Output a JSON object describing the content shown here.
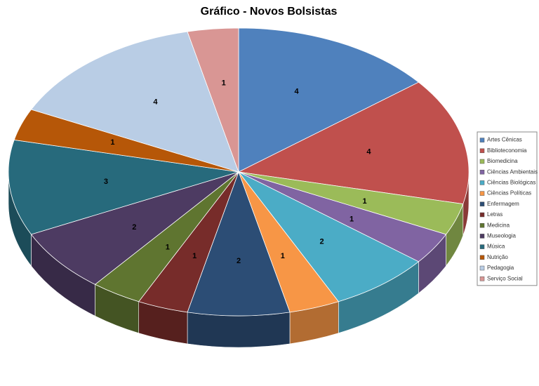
{
  "chart_data": {
    "type": "pie",
    "title": "Gráfico - Novos Bolsistas",
    "categories": [
      "Artes Cênicas",
      "Biblioteconomia",
      "Biomedicina",
      "Ciências Ambientais",
      "Ciências Biológicas",
      "Ciências Políticas",
      "Enfermagem",
      "Letras",
      "Medicina",
      "Museologia",
      "Música",
      "Nutrição",
      "Pedagogia",
      "Serviço Social"
    ],
    "values": [
      4,
      4,
      1,
      1,
      2,
      1,
      2,
      1,
      1,
      2,
      3,
      1,
      4,
      1
    ],
    "colors": [
      "#4f81bd",
      "#c0504d",
      "#9bbb59",
      "#8064a2",
      "#4bacc6",
      "#f79646",
      "#2c4d75",
      "#772c2a",
      "#5f7530",
      "#4d3b62",
      "#276a7c",
      "#b65708",
      "#b9cde5",
      "#d99694"
    ],
    "legend": "right"
  }
}
